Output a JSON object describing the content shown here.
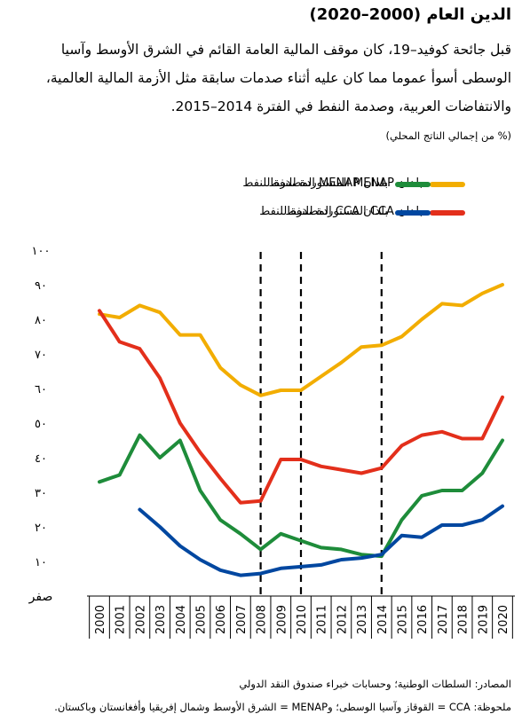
{
  "header": {
    "title": "الدين العام (2000–2020)",
    "subtitle": "قبل جائحة كوفيد–19، كان موقف المالية العامة القائم في الشرق الأوسط وآسيا الوسطى أسوأ عموما مما كان عليه أثناء صدمات سابقة مثل الأزمة المالية العالمية، والانتفاضات العربية، وصدمة النفط في الفترة 2014–2015.",
    "units": "(% من إجمالي الناتج المحلي)"
  },
  "footer": {
    "source": "المصادر: السلطات الوطنية؛ وحسابات خبراء صندوق النقد الدولي",
    "note": "ملحوظة: CCA = القوقاز وآسيا الوسطى؛ وMENAP = الشرق الأوسط وشمال إفريقيا وأفغانستان وباكستان."
  },
  "chart_data": {
    "type": "line",
    "x": [
      2000,
      2001,
      2002,
      2003,
      2004,
      2005,
      2006,
      2007,
      2008,
      2009,
      2010,
      2011,
      2012,
      2013,
      2014,
      2015,
      2016,
      2017,
      2018,
      2019,
      2020
    ],
    "x_tick_labels": [
      "2000",
      "2001",
      "2002",
      "2003",
      "2004",
      "2005",
      "2006",
      "2007",
      "2008",
      "2009",
      "2010",
      "2011",
      "2012",
      "2013",
      "2014",
      "2015",
      "2016",
      "2017",
      "2018",
      "2019",
      "2020"
    ],
    "ylim": [
      0,
      100
    ],
    "y_ticks": [
      0,
      10,
      20,
      30,
      40,
      50,
      60,
      70,
      80,
      90,
      100
    ],
    "y_tick_labels": [
      "صفر",
      "١٠",
      "٢٠",
      "٣٠",
      "٤٠",
      "٥٠",
      "٦٠",
      "٧٠",
      "٨٠",
      "٩٠",
      "١٠٠"
    ],
    "grid": false,
    "vertical_markers": [
      2008,
      2010,
      2014
    ],
    "vertical_marker_style": "dashed",
    "legend_placement": "top",
    "series": [
      {
        "name": "بلدان MENAP المستوردة للنفط",
        "color": "#f2ad00",
        "values": [
          81.5,
          80.5,
          84,
          82,
          75.5,
          75.5,
          66,
          61,
          58,
          59.5,
          59.5,
          63.5,
          67.5,
          72,
          72.5,
          75,
          80,
          84.5,
          84,
          87.5,
          90
        ]
      },
      {
        "name": "بلدان MENAP المصدرة للنفط",
        "color": "#1e8c3a",
        "values": [
          33,
          35,
          46.5,
          40,
          45,
          30.5,
          22,
          18,
          13.5,
          18,
          16,
          14,
          13.5,
          12,
          11.5,
          22,
          29,
          30.5,
          30.5,
          35.5,
          45
        ]
      },
      {
        "name": "بلدان CCA المستوردة للنفط",
        "color": "#e32f1b",
        "values": [
          82.5,
          73.5,
          71.5,
          63,
          50,
          41.5,
          34,
          27,
          27.5,
          39.5,
          39.5,
          37.5,
          36.5,
          35.5,
          37,
          43.5,
          46.5,
          47.5,
          45.5,
          45.5,
          57.5
        ]
      },
      {
        "name": "بلدان CCA المصدرة للنفط",
        "color": "#0047a0",
        "values": [
          null,
          null,
          25,
          20,
          14.5,
          10.5,
          7.5,
          6,
          6.5,
          8,
          8.5,
          9,
          10.5,
          11,
          12,
          17.5,
          17,
          20.5,
          20.5,
          22,
          26
        ]
      }
    ]
  }
}
